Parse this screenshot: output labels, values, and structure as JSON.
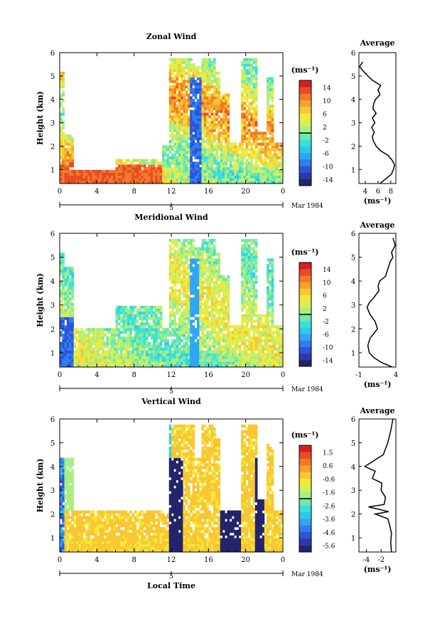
{
  "chart_data": [
    {
      "type": "heatmap",
      "title": "Zonal Wind",
      "ylabel": "Height (km)",
      "xticks": [
        "0",
        "4",
        "8",
        "12",
        "16",
        "20",
        "0"
      ],
      "yticks": [
        "1",
        "2",
        "3",
        "4",
        "5",
        "6"
      ],
      "xlim": [
        0,
        24
      ],
      "ylim": [
        0.4,
        6
      ],
      "date_label": "5",
      "date_suffix": "Mar 1984",
      "colorbar": {
        "unit": "(ms⁻¹)",
        "ticks": [
          "14",
          "10",
          "6",
          "2",
          "-2",
          "-6",
          "-10",
          "-14"
        ],
        "range": [
          -16,
          16
        ]
      },
      "average": {
        "title": "Average",
        "xlabel": "(ms⁻¹)",
        "xticks": [
          "4",
          "6",
          "8"
        ],
        "yticks": [
          "1",
          "2",
          "3",
          "4",
          "5",
          "6"
        ],
        "xlim": [
          3,
          8.8
        ],
        "points": [
          [
            6.3,
            0.4
          ],
          [
            7.2,
            0.6
          ],
          [
            8.1,
            0.8
          ],
          [
            8.4,
            1.0
          ],
          [
            8.6,
            1.2
          ],
          [
            8.2,
            1.4
          ],
          [
            7.6,
            1.6
          ],
          [
            6.4,
            1.8
          ],
          [
            5.7,
            2.0
          ],
          [
            5.3,
            2.2
          ],
          [
            5.1,
            2.4
          ],
          [
            5.4,
            2.6
          ],
          [
            5.0,
            2.8
          ],
          [
            5.5,
            3.0
          ],
          [
            5.1,
            3.2
          ],
          [
            5.7,
            3.4
          ],
          [
            5.2,
            3.6
          ],
          [
            5.3,
            3.8
          ],
          [
            5.6,
            4.0
          ],
          [
            6.3,
            4.2
          ],
          [
            6.0,
            4.4
          ],
          [
            6.4,
            4.6
          ],
          [
            5.2,
            4.8
          ],
          [
            4.4,
            5.0
          ],
          [
            3.7,
            5.2
          ],
          [
            3.1,
            5.4
          ],
          [
            3.6,
            5.6
          ]
        ]
      }
    },
    {
      "type": "heatmap",
      "title": "Meridional Wind",
      "ylabel": "Height (km)",
      "xticks": [
        "0",
        "4",
        "8",
        "12",
        "16",
        "20",
        "0"
      ],
      "yticks": [
        "1",
        "2",
        "3",
        "4",
        "5",
        "6"
      ],
      "xlim": [
        0,
        24
      ],
      "ylim": [
        0.4,
        6
      ],
      "date_label": "5",
      "date_suffix": "Mar 1984",
      "colorbar": {
        "unit": "(ms⁻¹)",
        "ticks": [
          "14",
          "10",
          "6",
          "2",
          "-2",
          "-6",
          "-10",
          "-14"
        ],
        "range": [
          -16,
          16
        ]
      },
      "average": {
        "title": "Average",
        "xlabel": "(ms⁻¹)",
        "xticks": [
          "-1",
          "4"
        ],
        "yticks": [
          "1",
          "2",
          "3",
          "4",
          "5",
          "6"
        ],
        "xlim": [
          -1,
          4
        ],
        "points": [
          [
            3.5,
            0.4
          ],
          [
            2.0,
            0.6
          ],
          [
            1.0,
            0.8
          ],
          [
            0.4,
            1.0
          ],
          [
            0.2,
            1.3
          ],
          [
            0.5,
            1.6
          ],
          [
            1.0,
            1.8
          ],
          [
            1.5,
            2.0
          ],
          [
            1.2,
            2.3
          ],
          [
            0.5,
            2.6
          ],
          [
            0.1,
            2.9
          ],
          [
            0.4,
            3.1
          ],
          [
            1.0,
            3.3
          ],
          [
            1.7,
            3.6
          ],
          [
            1.6,
            3.8
          ],
          [
            1.8,
            4.0
          ],
          [
            2.6,
            4.2
          ],
          [
            2.9,
            4.5
          ],
          [
            3.2,
            4.8
          ],
          [
            3.6,
            5.0
          ],
          [
            3.4,
            5.2
          ],
          [
            3.9,
            5.5
          ],
          [
            3.6,
            5.8
          ]
        ]
      }
    },
    {
      "type": "heatmap",
      "title": "Vertical Wind",
      "ylabel": "Height (km)",
      "xlabel": "Local Time",
      "xticks": [
        "0",
        "4",
        "8",
        "12",
        "16",
        "20",
        "0"
      ],
      "yticks": [
        "1",
        "2",
        "3",
        "4",
        "5",
        "6"
      ],
      "xlim": [
        0,
        24
      ],
      "ylim": [
        0.4,
        6
      ],
      "date_label": "5",
      "date_suffix": "Mar 1984",
      "colorbar": {
        "unit": "(ms⁻¹)",
        "ticks": [
          "1.5",
          "0.6",
          "-0.6",
          "-1.6",
          "-2.6",
          "-3.6",
          "-4.6",
          "-5.6"
        ],
        "range": [
          -6,
          2
        ]
      },
      "average": {
        "title": "Average",
        "xlabel": "(ms⁻¹)",
        "xticks": [
          "-4",
          "-2"
        ],
        "yticks": [
          "1",
          "2",
          "3",
          "4",
          "5",
          "6"
        ],
        "xlim": [
          -5,
          0
        ],
        "points": [
          [
            -0.6,
            0.4
          ],
          [
            -0.7,
            0.8
          ],
          [
            -0.6,
            1.2
          ],
          [
            -0.9,
            1.6
          ],
          [
            -1.1,
            1.8
          ],
          [
            -2.8,
            2.0
          ],
          [
            -1.0,
            2.1
          ],
          [
            -3.7,
            2.3
          ],
          [
            -1.6,
            2.4
          ],
          [
            -1.4,
            2.7
          ],
          [
            -2.0,
            3.0
          ],
          [
            -1.9,
            3.3
          ],
          [
            -3.2,
            3.5
          ],
          [
            -2.8,
            3.8
          ],
          [
            -4.2,
            4.0
          ],
          [
            -3.2,
            4.2
          ],
          [
            -1.7,
            4.5
          ],
          [
            -1.1,
            5.0
          ],
          [
            -0.7,
            5.5
          ],
          [
            -0.4,
            6.0
          ]
        ]
      }
    }
  ]
}
